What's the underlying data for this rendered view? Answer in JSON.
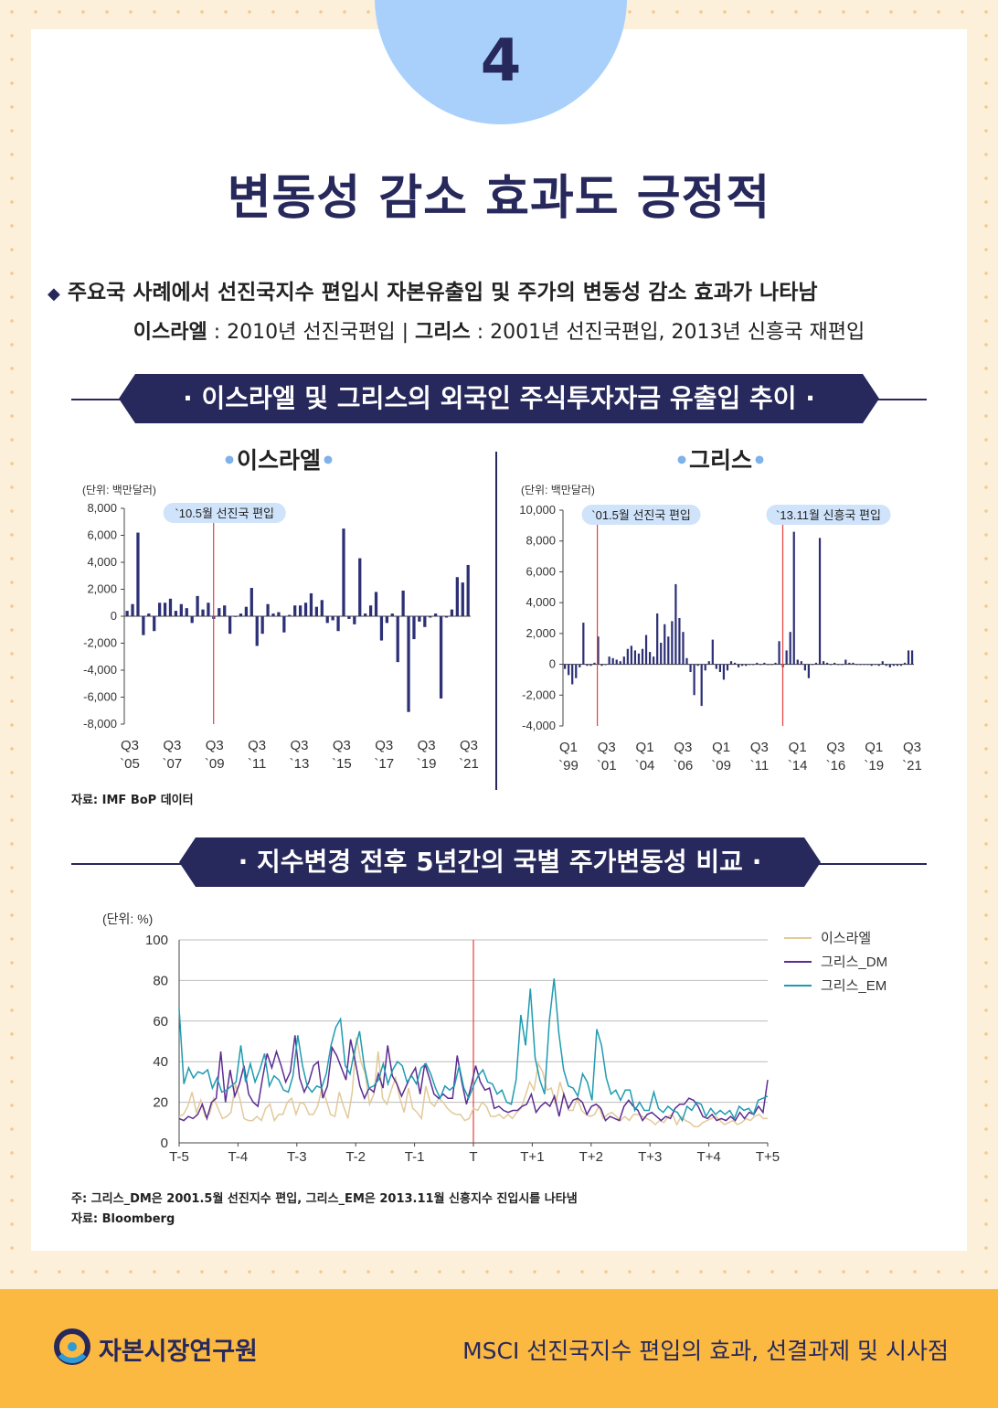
{
  "page": {
    "number": "4",
    "title": "변동성 감소 효과도 긍정적",
    "bullet_text": "주요국 사례에서 선진국지수 편입시 자본유출입 및 주가의 변동성 감소 효과가 나타남",
    "sub": {
      "israel_label": "이스라엘",
      "israel_text": " : 2010년 선진국편입 | ",
      "greece_label": "그리스",
      "greece_text": " : 2001년 선진국편입, 2013년 신흥국 재편입"
    },
    "banner1": "· 이스라엘 및 그리스의 외국인 주식투자자금 유출입 추이 ·",
    "banner2": "· 지수변경 전후 5년간의 국별 주가변동성 비교 ·",
    "source1": "자료: IMF BoP 데이터",
    "note2": "주: 그리스_DM은 2001.5월 선진지수 편입, 그리스_EM은 2013.11월 신흥지수 진입시를 나타냄",
    "source2": "자료: Bloomberg",
    "footer": {
      "org": "자본시장연구원",
      "report": "MSCI 선진국지수 편입의 효과, 선결과제 및 시사점"
    },
    "colors": {
      "navy": "#27285b",
      "bar": "#2d3075",
      "event_line": "#e4413f",
      "footer_bg": "#fbb942",
      "circle": "#a9d0fb"
    }
  },
  "chart_data": [
    {
      "type": "bar",
      "title": "이스라엘",
      "unit": "(단위: 백만달러)",
      "ylim": [
        -8000,
        8000
      ],
      "yticks": [
        "8,000",
        "6,000",
        "4,000",
        "2,000",
        "0",
        "-2,000",
        "-4,000",
        "-6,000",
        "-8,000"
      ],
      "ytick_values": [
        8000,
        6000,
        4000,
        2000,
        0,
        -2000,
        -4000,
        -6000,
        -8000
      ],
      "xtick_labels": [
        [
          "Q3",
          "`05"
        ],
        [
          "Q3",
          "`07"
        ],
        [
          "Q3",
          "`09"
        ],
        [
          "Q3",
          "`11"
        ],
        [
          "Q3",
          "`13"
        ],
        [
          "Q3",
          "`15"
        ],
        [
          "Q3",
          "`17"
        ],
        [
          "Q3",
          "`19"
        ],
        [
          "Q3",
          "`21"
        ]
      ],
      "event": {
        "index": 16.5,
        "label": "`10.5월 선진국 편입"
      },
      "values": [
        400,
        900,
        6200,
        -1400,
        200,
        -1100,
        1000,
        1000,
        1300,
        400,
        900,
        600,
        -500,
        1500,
        500,
        1000,
        -200,
        600,
        800,
        -1300,
        0,
        200,
        700,
        2100,
        -2200,
        -1300,
        900,
        200,
        300,
        -1200,
        100,
        800,
        800,
        1000,
        1700,
        700,
        1200,
        -500,
        -300,
        -1100,
        6500,
        -200,
        -600,
        4300,
        200,
        800,
        1800,
        -1800,
        -500,
        200,
        -3400,
        1900,
        -7100,
        -1700,
        -400,
        -800,
        -100,
        200,
        -6100,
        -100,
        500,
        2900,
        2500,
        3800
      ]
    },
    {
      "type": "bar",
      "title": "그리스",
      "unit": "(단위: 백만달러)",
      "ylim": [
        -4000,
        10000
      ],
      "yticks": [
        "10,000",
        "8,000",
        "6,000",
        "4,000",
        "2,000",
        "0",
        "-2,000",
        "-4,000"
      ],
      "ytick_values": [
        10000,
        8000,
        6000,
        4000,
        2000,
        0,
        -2000,
        -4000
      ],
      "xtick_labels": [
        [
          "Q1",
          "`99"
        ],
        [
          "Q3",
          "`01"
        ],
        [
          "Q1",
          "`04"
        ],
        [
          "Q3",
          "`06"
        ],
        [
          "Q1",
          "`09"
        ],
        [
          "Q3",
          "`11"
        ],
        [
          "Q1",
          "`14"
        ],
        [
          "Q3",
          "`16"
        ],
        [
          "Q1",
          "`19"
        ],
        [
          "Q3",
          "`21"
        ]
      ],
      "events": [
        {
          "index": 9.3,
          "label": "`01.5월 선진국 편입"
        },
        {
          "index": 59.5,
          "label": "`13.11월 신흥국 편입"
        }
      ],
      "values": [
        -300,
        -700,
        -1300,
        -900,
        -200,
        2700,
        -100,
        -100,
        100,
        1800,
        -100,
        0,
        500,
        400,
        300,
        200,
        500,
        1000,
        1200,
        900,
        700,
        1000,
        1900,
        800,
        500,
        3300,
        1400,
        2600,
        1800,
        2800,
        5200,
        3000,
        2100,
        400,
        -500,
        -2000,
        -100,
        -2700,
        -400,
        200,
        1600,
        -300,
        -500,
        -1000,
        -400,
        200,
        100,
        -200,
        -100,
        -100,
        0,
        0,
        100,
        0,
        100,
        0,
        0,
        100,
        1500,
        -200,
        900,
        2100,
        8600,
        300,
        200,
        -400,
        -900,
        0,
        100,
        8200,
        200,
        100,
        0,
        100,
        0,
        0,
        300,
        100,
        100,
        0,
        0,
        0,
        0,
        -100,
        0,
        -100,
        200,
        -100,
        -200,
        -100,
        -100,
        -100,
        100,
        900,
        900
      ]
    },
    {
      "type": "line",
      "title": "",
      "unit": "(단위: %)",
      "ylim": [
        0,
        100
      ],
      "yticks": [
        "100",
        "80",
        "60",
        "40",
        "20",
        "0"
      ],
      "ytick_values": [
        100,
        80,
        60,
        40,
        20,
        0
      ],
      "x_labels": [
        "T-5",
        "T-4",
        "T-3",
        "T-2",
        "T-1",
        "T",
        "T+1",
        "T+2",
        "T+3",
        "T+4",
        "T+5"
      ],
      "x_range": [
        -5,
        5
      ],
      "series": [
        {
          "name": "이스라엘",
          "color": "#e2c99a",
          "values": [
            13,
            14,
            18,
            25,
            15,
            21,
            13,
            14,
            22,
            17,
            12,
            13,
            15,
            29,
            22,
            12,
            11,
            11,
            13,
            11,
            17,
            19,
            11,
            14,
            14,
            20,
            22,
            14,
            20,
            19,
            14,
            14,
            18,
            27,
            21,
            14,
            13,
            25,
            18,
            12,
            25,
            52,
            40,
            34,
            19,
            24,
            45,
            22,
            19,
            26,
            32,
            22,
            15,
            27,
            17,
            15,
            12,
            28,
            20,
            18,
            22,
            20,
            17,
            15,
            14,
            14,
            11,
            12,
            17,
            16,
            20,
            18,
            13,
            13,
            14,
            12,
            14,
            12,
            15,
            17,
            23,
            30,
            26,
            39,
            35,
            26,
            27,
            19,
            30,
            23,
            16,
            16,
            22,
            16,
            14,
            13,
            14,
            18,
            12,
            14,
            15,
            13,
            11,
            13,
            11,
            14,
            14,
            13,
            12,
            11,
            9,
            11,
            10,
            13,
            14,
            9,
            13,
            11,
            10,
            8,
            8,
            10,
            11,
            12,
            13,
            11,
            9,
            10,
            11,
            9,
            10,
            12,
            11,
            13,
            14,
            12,
            12
          ]
        },
        {
          "name": "그리스_DM",
          "color": "#5c2d91",
          "values": [
            12,
            11,
            13,
            12,
            14,
            19,
            12,
            20,
            22,
            45,
            20,
            36,
            23,
            29,
            38,
            24,
            20,
            18,
            32,
            44,
            37,
            45,
            38,
            30,
            35,
            53,
            32,
            25,
            30,
            38,
            40,
            22,
            28,
            47,
            43,
            37,
            31,
            51,
            40,
            28,
            22,
            27,
            25,
            34,
            27,
            48,
            33,
            29,
            23,
            28,
            33,
            37,
            24,
            39,
            32,
            24,
            22,
            24,
            22,
            22,
            43,
            30,
            19,
            28,
            38,
            30,
            26,
            27,
            17,
            18,
            16,
            15,
            16,
            16,
            18,
            19,
            24,
            15,
            18,
            20,
            18,
            23,
            13,
            24,
            17,
            21,
            22,
            20,
            14,
            18,
            19,
            17,
            11,
            13,
            12,
            11,
            18,
            21,
            18,
            16,
            11,
            14,
            15,
            13,
            11,
            13,
            12,
            17,
            19,
            19,
            22,
            21,
            18,
            13,
            12,
            14,
            11,
            12,
            11,
            13,
            11,
            15,
            12,
            15,
            14,
            18,
            15,
            31
          ]
        },
        {
          "name": "그리스_EM",
          "color": "#1f9bb0",
          "values": [
            66,
            29,
            37,
            32,
            35,
            34,
            36,
            27,
            32,
            25,
            26,
            28,
            30,
            48,
            30,
            39,
            30,
            36,
            44,
            28,
            33,
            31,
            26,
            25,
            33,
            53,
            38,
            28,
            25,
            28,
            27,
            34,
            48,
            57,
            61,
            38,
            34,
            46,
            55,
            38,
            27,
            28,
            31,
            39,
            29,
            36,
            40,
            38,
            30,
            33,
            29,
            37,
            39,
            34,
            27,
            22,
            28,
            26,
            28,
            38,
            27,
            22,
            28,
            33,
            36,
            30,
            29,
            24,
            26,
            20,
            19,
            31,
            63,
            48,
            76,
            42,
            31,
            24,
            60,
            81,
            54,
            36,
            28,
            27,
            23,
            34,
            30,
            21,
            56,
            48,
            32,
            24,
            26,
            21,
            26,
            26,
            16,
            20,
            16,
            16,
            25,
            17,
            15,
            18,
            16,
            15,
            11,
            18,
            16,
            20,
            19,
            13,
            17,
            14,
            16,
            14,
            16,
            12,
            18,
            16,
            17,
            14,
            21,
            22,
            23
          ]
        }
      ],
      "event": {
        "x": 0
      }
    }
  ]
}
